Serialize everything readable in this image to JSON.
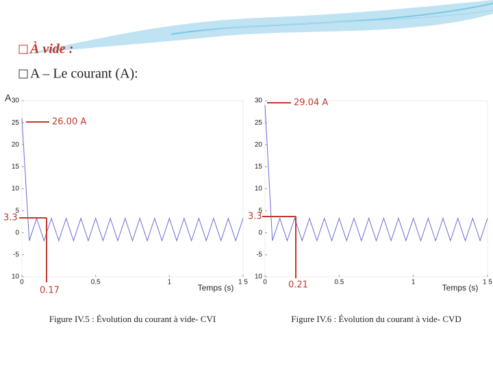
{
  "slide": {
    "heading": "À vide :",
    "subheading": "A – Le courant (A):"
  },
  "chart_data": [
    {
      "type": "line",
      "y_label": "A",
      "x_label": "Temps (s)",
      "caption": "Figure IV.5 : Évolution du courant à vide- CVI",
      "annotations": [
        "26.00 A",
        "3.3",
        "0.17"
      ],
      "x": [
        0,
        0.05,
        0.1,
        0.15,
        0.2,
        0.25,
        0.3,
        0.35,
        0.4,
        0.45,
        0.5,
        0.55,
        0.6,
        0.65,
        0.7,
        0.75,
        0.8,
        0.85,
        0.9,
        0.95,
        1,
        1.05,
        1.1,
        1.15,
        1.2,
        1.25,
        1.3,
        1.35,
        1.4,
        1.45,
        1.5
      ],
      "series": [
        {
          "color": "#6b6bd6",
          "values": [
            26,
            -1.8,
            3.3,
            -1.8,
            3.3,
            -1.8,
            3.3,
            -1.8,
            3.3,
            -1.8,
            3.3,
            -1.8,
            3.3,
            -1.8,
            3.3,
            -1.8,
            3.3,
            -1.8,
            3.3,
            -1.8,
            3.3,
            -1.8,
            3.3,
            -1.8,
            3.3,
            -1.8,
            3.3,
            -1.8,
            3.3,
            -1.8,
            3.3
          ]
        }
      ],
      "xlim": [
        0,
        1.5
      ],
      "xticks": [
        0,
        0.5,
        1,
        {
          "value": 1.5,
          "label": "1 5"
        }
      ],
      "ylim": [
        -10,
        30
      ],
      "yticks": [
        {
          "value": -10,
          "label": "10"
        },
        -5,
        0,
        5,
        10,
        15,
        20,
        25,
        30
      ]
    },
    {
      "type": "line",
      "x_label": "Temps (s)",
      "caption": "Figure IV.6 : Évolution du courant à vide- CVD",
      "annotations": [
        "29.04 A",
        "3.3",
        "0.21"
      ],
      "x": [
        0,
        0.05,
        0.1,
        0.15,
        0.2,
        0.25,
        0.3,
        0.35,
        0.4,
        0.45,
        0.5,
        0.55,
        0.6,
        0.65,
        0.7,
        0.75,
        0.8,
        0.85,
        0.9,
        0.95,
        1,
        1.05,
        1.1,
        1.15,
        1.2,
        1.25,
        1.3,
        1.35,
        1.4,
        1.45,
        1.5
      ],
      "series": [
        {
          "color": "#6b6bd6",
          "values": [
            29.04,
            -1.8,
            3.3,
            -1.8,
            3.3,
            -1.8,
            3.3,
            -1.8,
            3.3,
            -1.8,
            3.3,
            -1.8,
            3.3,
            -1.8,
            3.3,
            -1.8,
            3.3,
            -1.8,
            3.3,
            -1.8,
            3.3,
            -1.8,
            3.3,
            -1.8,
            3.3,
            -1.8,
            3.3,
            -1.8,
            3.3,
            -1.8,
            3.3
          ]
        }
      ],
      "xlim": [
        0,
        1.5
      ],
      "xticks": [
        0,
        0.5,
        1,
        {
          "value": 1.5,
          "label": "1 5"
        }
      ],
      "ylim": [
        -10,
        30
      ],
      "yticks": [
        {
          "value": -10,
          "label": "10"
        },
        -5,
        0,
        5,
        10,
        15,
        20,
        25,
        30
      ]
    }
  ]
}
